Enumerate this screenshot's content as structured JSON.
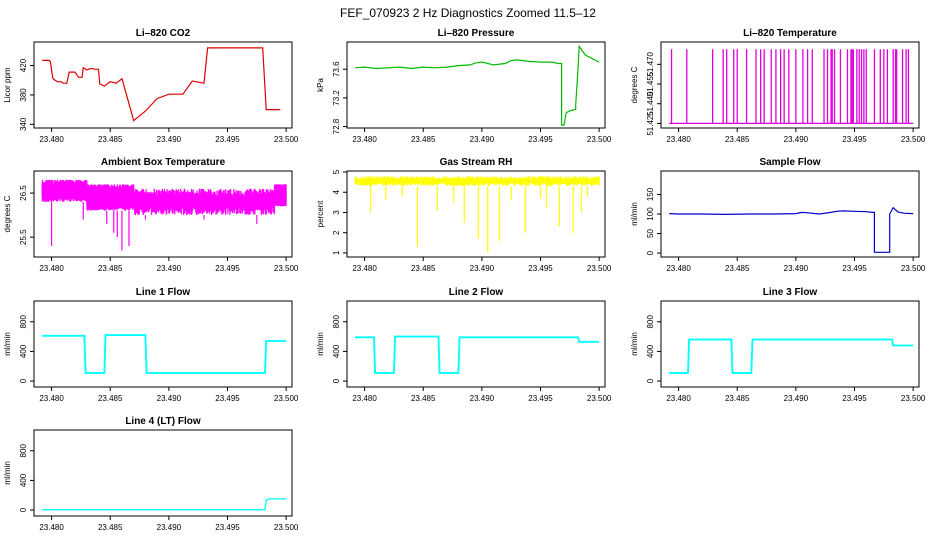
{
  "figure_title": "FEF_070923  2 Hz Diagnostics Zoomed 11.5–12",
  "chart_data": [
    {
      "id": "co2",
      "type": "line",
      "title": "Li–820 CO2",
      "ylabel": "Licor ppm",
      "color": "#dd0000",
      "xlim": [
        23.4785,
        23.5005
      ],
      "ylim": [
        335,
        452
      ],
      "xticks": [
        "23.480",
        "23.485",
        "23.490",
        "23.495",
        "23.500"
      ],
      "yticks": [
        340,
        380,
        420
      ],
      "ytick_labels": [
        "340",
        "380",
        "420"
      ],
      "series": [
        {
          "x": [
            23.4792,
            23.4793,
            23.4797,
            23.4798,
            23.4799,
            23.4801,
            23.4802,
            23.4803,
            23.4805,
            23.4808,
            23.481,
            23.4813,
            23.4815,
            23.482,
            23.4823,
            23.4826,
            23.4827,
            23.483,
            23.4833,
            23.4837,
            23.484,
            23.4841,
            23.4845,
            23.485,
            23.4855,
            23.486,
            23.487,
            23.488,
            23.489,
            23.49,
            23.4912,
            23.492,
            23.493,
            23.4933,
            23.4943,
            23.4955,
            23.496,
            23.4965,
            23.4975,
            23.498,
            23.4983,
            23.4985,
            23.4995
          ],
          "y": [
            427,
            427,
            427,
            427,
            425,
            403,
            401,
            400,
            398,
            398,
            396,
            396,
            411,
            411,
            404,
            404,
            417,
            414,
            416,
            415,
            415,
            395,
            392,
            398,
            396,
            402,
            345,
            358,
            375,
            381,
            381,
            399,
            396,
            444,
            444,
            444,
            444,
            444,
            444,
            444,
            360,
            360,
            360
          ]
        }
      ]
    },
    {
      "id": "pressure",
      "type": "line",
      "title": "Li–820 Pressure",
      "ylabel": "kPa",
      "color": "#00bb00",
      "xlim": [
        23.4785,
        23.5005
      ],
      "ylim": [
        72.78,
        73.98
      ],
      "xticks": [
        "23.480",
        "23.485",
        "23.490",
        "23.495",
        "23.500"
      ],
      "yticks": [
        72.8,
        73.2,
        73.6
      ],
      "ytick_labels": [
        "72.8",
        "73.2",
        "73.6"
      ],
      "series": [
        {
          "x": [
            23.4792,
            23.48,
            23.481,
            23.482,
            23.483,
            23.484,
            23.485,
            23.486,
            23.487,
            23.488,
            23.489,
            23.4895,
            23.49,
            23.4905,
            23.491,
            23.492,
            23.4925,
            23.493,
            23.494,
            23.495,
            23.496,
            23.4965,
            23.4968,
            23.4968,
            23.497,
            23.4972,
            23.4973,
            23.4975,
            23.4977,
            23.498,
            23.498,
            23.4982,
            23.4983,
            23.4988,
            23.4995,
            23.5
          ],
          "y": [
            73.62,
            73.63,
            73.61,
            73.62,
            73.63,
            73.61,
            73.63,
            73.62,
            73.63,
            73.65,
            73.66,
            73.69,
            73.7,
            73.68,
            73.66,
            73.68,
            73.72,
            73.73,
            73.71,
            73.7,
            73.7,
            73.68,
            73.68,
            72.82,
            72.82,
            73.0,
            73.0,
            73.02,
            73.03,
            73.04,
            73.1,
            73.6,
            73.92,
            73.8,
            73.74,
            73.7
          ]
        }
      ]
    },
    {
      "id": "temperature",
      "type": "line",
      "title": "Li–820 Temperature",
      "ylabel": "degrees C",
      "color": "#dd00dd",
      "xlim": [
        23.4785,
        23.5005
      ],
      "ylim": [
        51.4215,
        51.487
      ],
      "xticks": [
        "23.480",
        "23.485",
        "23.490",
        "23.495",
        "23.500"
      ],
      "yticks": [
        51.425,
        51.44,
        51.455,
        51.47
      ],
      "ytick_labels": [
        "51.425",
        "51.440",
        "51.455",
        "51.470"
      ],
      "baseline": 51.425,
      "spike_top": 51.4815,
      "spikes_x": [
        23.4794,
        23.4807,
        23.4829,
        23.4838,
        23.4841,
        23.4847,
        23.485,
        23.4858,
        23.4866,
        23.487,
        23.4873,
        23.4879,
        23.4883,
        23.4887,
        23.489,
        23.4894,
        23.49,
        23.4906,
        23.491,
        23.4914,
        23.4924,
        23.4927,
        23.493,
        23.4931,
        23.4933,
        23.4938,
        23.4944,
        23.4947,
        23.4948,
        23.4949,
        23.4952,
        23.4954,
        23.4956,
        23.4958,
        23.496,
        23.4967,
        23.4972,
        23.4975,
        23.4978,
        23.4983,
        23.4985,
        23.4986,
        23.4991,
        23.4994,
        23.4996
      ]
    },
    {
      "id": "ambient",
      "type": "line",
      "title": "Ambient Box Temperature",
      "ylabel": "degrees C",
      "color": "#ff00ff",
      "xlim": [
        23.4785,
        23.5005
      ],
      "ylim": [
        25.05,
        27.0
      ],
      "xticks": [
        "23.480",
        "23.485",
        "23.490",
        "23.495",
        "23.500"
      ],
      "yticks": [
        25.5,
        26.5
      ],
      "ytick_labels": [
        "25.5",
        "26.5"
      ],
      "bands": [
        {
          "x": [
            23.4792,
            23.483
          ],
          "y": [
            26.3,
            26.8
          ]
        },
        {
          "x": [
            23.483,
            23.487
          ],
          "y": [
            26.1,
            26.7
          ]
        },
        {
          "x": [
            23.487,
            23.499
          ],
          "y": [
            26.0,
            26.6
          ]
        },
        {
          "x": [
            23.499,
            23.5
          ],
          "y": [
            26.2,
            26.7
          ]
        }
      ],
      "dips": [
        {
          "x": 23.48,
          "y": 25.3
        },
        {
          "x": 23.4827,
          "y": 25.9
        },
        {
          "x": 23.4847,
          "y": 25.8
        },
        {
          "x": 23.4853,
          "y": 25.6
        },
        {
          "x": 23.4856,
          "y": 25.5
        },
        {
          "x": 23.486,
          "y": 25.2
        },
        {
          "x": 23.4866,
          "y": 25.3
        },
        {
          "x": 23.488,
          "y": 25.9
        },
        {
          "x": 23.493,
          "y": 25.9
        },
        {
          "x": 23.4975,
          "y": 25.8
        },
        {
          "x": 23.499,
          "y": 26.0
        }
      ]
    },
    {
      "id": "rh",
      "type": "line",
      "title": "Gas Stream RH",
      "ylabel": "percent",
      "color": "#ffff00",
      "xlim": [
        23.4785,
        23.5005
      ],
      "ylim": [
        0.8,
        5.05
      ],
      "xticks": [
        "23.480",
        "23.485",
        "23.490",
        "23.495",
        "23.500"
      ],
      "yticks": [
        1,
        2,
        3,
        4,
        5
      ],
      "ytick_labels": [
        "1",
        "2",
        "3",
        "4",
        "5"
      ],
      "band": {
        "x": [
          23.4792,
          23.5
        ],
        "y": [
          4.3,
          4.8
        ]
      },
      "dips": [
        {
          "x": 23.4805,
          "y": 3.0
        },
        {
          "x": 23.4818,
          "y": 3.6
        },
        {
          "x": 23.4832,
          "y": 3.8
        },
        {
          "x": 23.4845,
          "y": 1.3
        },
        {
          "x": 23.4862,
          "y": 3.1
        },
        {
          "x": 23.4876,
          "y": 3.5
        },
        {
          "x": 23.4885,
          "y": 2.5
        },
        {
          "x": 23.4897,
          "y": 1.7
        },
        {
          "x": 23.4905,
          "y": 1.0
        },
        {
          "x": 23.4915,
          "y": 1.6
        },
        {
          "x": 23.4925,
          "y": 3.6
        },
        {
          "x": 23.4937,
          "y": 2.0
        },
        {
          "x": 23.495,
          "y": 3.7
        },
        {
          "x": 23.4955,
          "y": 3.2
        },
        {
          "x": 23.4966,
          "y": 2.3
        },
        {
          "x": 23.4978,
          "y": 2.0
        },
        {
          "x": 23.4985,
          "y": 3.0
        },
        {
          "x": 23.499,
          "y": 3.8
        }
      ]
    },
    {
      "id": "sample",
      "type": "line",
      "title": "Sample Flow",
      "ylabel": "ml/min",
      "color": "#0000cc",
      "xlim": [
        23.4785,
        23.5005
      ],
      "ylim": [
        -10,
        210
      ],
      "xticks": [
        "23.480",
        "23.485",
        "23.490",
        "23.495",
        "23.500"
      ],
      "yticks": [
        0,
        50,
        100,
        150
      ],
      "ytick_labels": [
        "0",
        "50",
        "100",
        "150"
      ],
      "series": [
        {
          "x": [
            23.4792,
            23.48,
            23.482,
            23.484,
            23.486,
            23.488,
            23.49,
            23.4905,
            23.491,
            23.492,
            23.493,
            23.4935,
            23.494,
            23.495,
            23.496,
            23.4965,
            23.4967,
            23.4967,
            23.498,
            23.498,
            23.4983,
            23.4987,
            23.4992,
            23.5
          ],
          "y": [
            101,
            100,
            100,
            99,
            100,
            100,
            101,
            104,
            103,
            100,
            104,
            107,
            108,
            107,
            106,
            104,
            104,
            2,
            2,
            100,
            116,
            105,
            102,
            101
          ]
        }
      ]
    },
    {
      "id": "line1",
      "type": "line",
      "title": "Line 1 Flow",
      "ylabel": "ml/min",
      "color": "#00ffff",
      "xlim": [
        23.4785,
        23.5005
      ],
      "ylim": [
        -80,
        1080
      ],
      "xticks": [
        "23.480",
        "23.485",
        "23.490",
        "23.495",
        "23.500"
      ],
      "yticks": [
        0,
        400,
        800
      ],
      "ytick_labels": [
        "0",
        "400",
        "800"
      ],
      "band_width": 25,
      "series": [
        {
          "x": [
            23.4792,
            23.4828,
            23.4829,
            23.4845,
            23.4846,
            23.488,
            23.4881,
            23.4982,
            23.4983,
            23.5
          ],
          "y": [
            610,
            610,
            110,
            110,
            620,
            620,
            110,
            110,
            540,
            540
          ]
        }
      ]
    },
    {
      "id": "line2",
      "type": "line",
      "title": "Line 2 Flow",
      "ylabel": "ml/min",
      "color": "#00ffff",
      "xlim": [
        23.4785,
        23.5005
      ],
      "ylim": [
        -80,
        1080
      ],
      "xticks": [
        "23.480",
        "23.485",
        "23.490",
        "23.495",
        "23.500"
      ],
      "yticks": [
        0,
        400,
        800
      ],
      "ytick_labels": [
        "0",
        "400",
        "800"
      ],
      "band_width": 25,
      "series": [
        {
          "x": [
            23.4792,
            23.4808,
            23.4809,
            23.4825,
            23.4826,
            23.4863,
            23.4864,
            23.488,
            23.4881,
            23.4982,
            23.4983,
            23.5
          ],
          "y": [
            590,
            590,
            110,
            110,
            600,
            600,
            110,
            110,
            590,
            590,
            530,
            530
          ]
        }
      ]
    },
    {
      "id": "line3",
      "type": "line",
      "title": "Line 3 Flow",
      "ylabel": "ml/min",
      "color": "#00ffff",
      "xlim": [
        23.4785,
        23.5005
      ],
      "ylim": [
        -80,
        1080
      ],
      "xticks": [
        "23.480",
        "23.485",
        "23.490",
        "23.495",
        "23.500"
      ],
      "yticks": [
        0,
        400,
        800
      ],
      "ytick_labels": [
        "0",
        "400",
        "800"
      ],
      "band_width": 25,
      "series": [
        {
          "x": [
            23.4792,
            23.4808,
            23.4809,
            23.4845,
            23.4846,
            23.4862,
            23.4863,
            23.4982,
            23.4983,
            23.5
          ],
          "y": [
            110,
            110,
            560,
            560,
            110,
            110,
            560,
            560,
            480,
            480
          ]
        }
      ]
    },
    {
      "id": "line4",
      "type": "line",
      "title": "Line 4 (LT) Flow",
      "ylabel": "ml/min",
      "color": "#00ffff",
      "xlim": [
        23.4785,
        23.5005
      ],
      "ylim": [
        -80,
        1080
      ],
      "xticks": [
        "23.480",
        "23.485",
        "23.490",
        "23.495",
        "23.500"
      ],
      "yticks": [
        0,
        400,
        800
      ],
      "ytick_labels": [
        "0",
        "400",
        "800"
      ],
      "band_width": 6,
      "series": [
        {
          "x": [
            23.4792,
            23.4982,
            23.4983,
            23.4985,
            23.5
          ],
          "y": [
            5,
            5,
            130,
            150,
            150
          ]
        }
      ]
    }
  ]
}
